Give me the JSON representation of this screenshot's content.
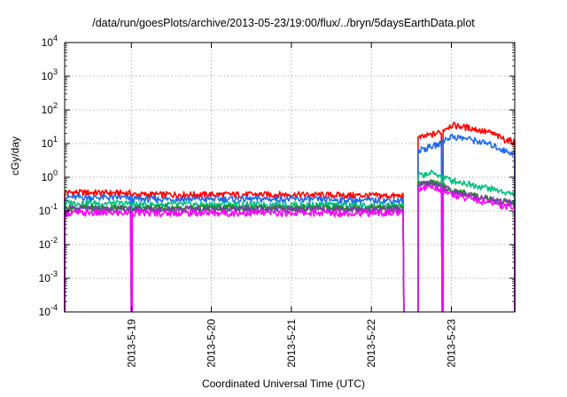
{
  "chart_data": {
    "type": "line",
    "title": "/data/run/goesPlots/archive/2013-05-23/19:00/flux/../bryn/5daysEarthData.plot",
    "xlabel": "Coordinated Universal Time (UTC)",
    "ylabel": "cGy/day",
    "y_scale": "log",
    "ylim": [
      0.0001,
      10000
    ],
    "xlim": [
      "2013-05-18 04:00",
      "2013-05-23 19:00"
    ],
    "grid": true,
    "legend": "none",
    "y_ticks": [
      {
        "base": "10",
        "exp": "-4",
        "value": 0.0001
      },
      {
        "base": "10",
        "exp": "-3",
        "value": 0.001
      },
      {
        "base": "10",
        "exp": "-2",
        "value": 0.01
      },
      {
        "base": "10",
        "exp": "-1",
        "value": 0.1
      },
      {
        "base": "10",
        "exp": "0",
        "value": 1
      },
      {
        "base": "10",
        "exp": "1",
        "value": 10
      },
      {
        "base": "10",
        "exp": "2",
        "value": 100
      },
      {
        "base": "10",
        "exp": "3",
        "value": 1000
      },
      {
        "base": "10",
        "exp": "4",
        "value": 10000
      }
    ],
    "x_ticks": [
      {
        "label": "2013-5-19",
        "time": "2013-05-19 00:00"
      },
      {
        "label": "2013-5-20",
        "time": "2013-05-20 00:00"
      },
      {
        "label": "2013-5-21",
        "time": "2013-05-21 00:00"
      },
      {
        "label": "2013-5-22",
        "time": "2013-05-22 00:00"
      },
      {
        "label": "2013-5-23",
        "time": "2013-05-23 00:00"
      }
    ],
    "data_gaps": [
      [
        "2013-05-18 23:50",
        "2013-05-19 00:05"
      ],
      [
        "2013-05-22 09:30",
        "2013-05-22 14:00"
      ],
      [
        "2013-05-22 21:10",
        "2013-05-22 21:20"
      ]
    ],
    "series": [
      {
        "color": "#ff0000",
        "x": [
          "2013-05-18 04:00",
          "2013-05-18 23:50",
          "2013-05-19 00:05",
          "2013-05-20 00:00",
          "2013-05-21 00:00",
          "2013-05-22 00:00",
          "2013-05-22 09:30",
          "2013-05-22 14:00",
          "2013-05-22 18:00",
          "2013-05-22 21:10",
          "2013-05-22 21:20",
          "2013-05-23 00:00",
          "2013-05-23 06:00",
          "2013-05-23 12:00",
          "2013-05-23 16:00",
          "2013-05-23 19:00"
        ],
        "y": [
          0.35,
          0.33,
          0.3,
          0.3,
          0.3,
          0.28,
          0.27,
          14,
          18,
          22,
          25,
          35,
          28,
          20,
          13,
          11
        ]
      },
      {
        "color": "#1e6be8",
        "x": [
          "2013-05-18 04:00",
          "2013-05-18 23:50",
          "2013-05-19 00:05",
          "2013-05-20 00:00",
          "2013-05-21 00:00",
          "2013-05-22 00:00",
          "2013-05-22 09:30",
          "2013-05-22 14:00",
          "2013-05-22 18:00",
          "2013-05-22 21:10",
          "2013-05-22 21:20",
          "2013-05-23 00:00",
          "2013-05-23 06:00",
          "2013-05-23 12:00",
          "2013-05-23 16:00",
          "2013-05-23 19:00"
        ],
        "y": [
          0.25,
          0.24,
          0.22,
          0.22,
          0.22,
          0.2,
          0.2,
          6,
          8,
          10,
          12,
          16,
          13,
          9,
          6,
          5
        ]
      },
      {
        "color": "#00c07f",
        "x": [
          "2013-05-18 04:00",
          "2013-05-18 23:50",
          "2013-05-19 00:05",
          "2013-05-20 00:00",
          "2013-05-21 00:00",
          "2013-05-22 00:00",
          "2013-05-22 09:30",
          "2013-05-22 14:00",
          "2013-05-22 18:00",
          "2013-05-22 21:10",
          "2013-05-22 21:20",
          "2013-05-23 00:00",
          "2013-05-23 06:00",
          "2013-05-23 12:00",
          "2013-05-23 16:00",
          "2013-05-23 19:00"
        ],
        "y": [
          0.17,
          0.16,
          0.15,
          0.15,
          0.15,
          0.14,
          0.14,
          1.1,
          1.3,
          1.1,
          1.0,
          0.8,
          0.6,
          0.45,
          0.35,
          0.3
        ]
      },
      {
        "color": "#1a8c1a",
        "x": [
          "2013-05-18 04:00",
          "2013-05-18 23:50",
          "2013-05-19 00:05",
          "2013-05-20 00:00",
          "2013-05-21 00:00",
          "2013-05-22 00:00",
          "2013-05-22 09:30",
          "2013-05-22 14:00",
          "2013-05-22 18:00",
          "2013-05-22 21:10",
          "2013-05-22 21:20",
          "2013-05-23 00:00",
          "2013-05-23 06:00",
          "2013-05-23 12:00",
          "2013-05-23 16:00",
          "2013-05-23 19:00"
        ],
        "y": [
          0.12,
          0.12,
          0.12,
          0.12,
          0.12,
          0.12,
          0.12,
          0.6,
          0.7,
          0.6,
          0.55,
          0.4,
          0.3,
          0.22,
          0.19,
          0.17
        ]
      },
      {
        "color": "#7b3fa8",
        "x": [
          "2013-05-18 04:00",
          "2013-05-18 23:50",
          "2013-05-19 00:05",
          "2013-05-20 00:00",
          "2013-05-21 00:00",
          "2013-05-22 00:00",
          "2013-05-22 09:30",
          "2013-05-22 14:00",
          "2013-05-22 18:00",
          "2013-05-22 21:10",
          "2013-05-22 21:20",
          "2013-05-23 00:00",
          "2013-05-23 06:00",
          "2013-05-23 12:00",
          "2013-05-23 16:00",
          "2013-05-23 19:00"
        ],
        "y": [
          0.11,
          0.11,
          0.11,
          0.11,
          0.11,
          0.11,
          0.11,
          0.6,
          0.65,
          0.55,
          0.5,
          0.38,
          0.28,
          0.21,
          0.18,
          0.16
        ]
      },
      {
        "color": "#ff00ff",
        "x": [
          "2013-05-18 04:00",
          "2013-05-18 23:50",
          "2013-05-19 00:05",
          "2013-05-20 00:00",
          "2013-05-21 00:00",
          "2013-05-22 00:00",
          "2013-05-22 09:30",
          "2013-05-22 14:00",
          "2013-05-22 18:00",
          "2013-05-22 21:10",
          "2013-05-22 21:20",
          "2013-05-23 00:00",
          "2013-05-23 06:00",
          "2013-05-23 12:00",
          "2013-05-23 16:00",
          "2013-05-23 19:00"
        ],
        "y": [
          0.085,
          0.085,
          0.085,
          0.085,
          0.085,
          0.085,
          0.085,
          0.45,
          0.5,
          0.42,
          0.4,
          0.3,
          0.22,
          0.17,
          0.14,
          0.13
        ]
      }
    ]
  }
}
